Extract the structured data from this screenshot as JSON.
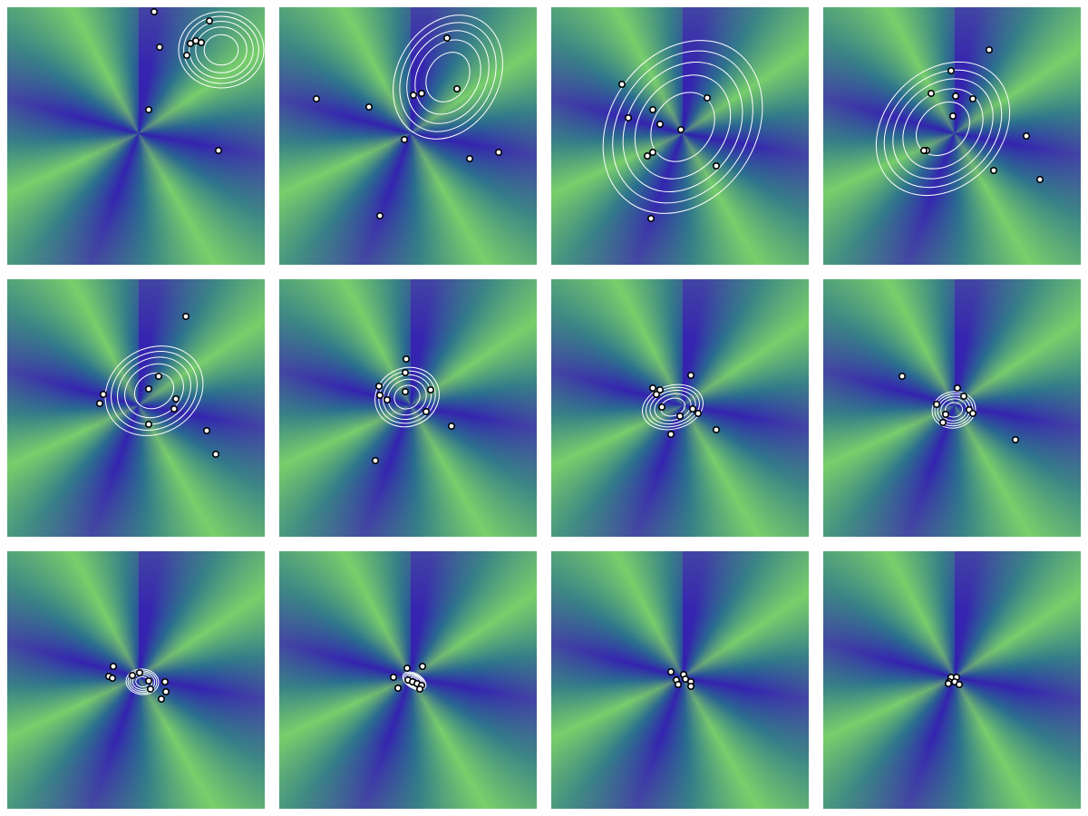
{
  "chart_data": [
    {
      "type": "scatter",
      "xlim": [
        0,
        284
      ],
      "ylim": [
        0,
        284
      ],
      "point_color": "#ffffff",
      "contour_color": "#ffffff",
      "contour_levels": [
        0.4,
        0.6,
        0.75,
        0.88,
        1.0
      ],
      "x": [
        162,
        223,
        168,
        202,
        208,
        214,
        198,
        156,
        233
      ],
      "y": [
        279,
        269,
        240,
        244,
        247,
        245,
        231,
        171,
        126
      ],
      "ellipse": {
        "cx": 236,
        "cy": 237,
        "rx": 47,
        "ry": 42,
        "angle": 0
      }
    },
    {
      "type": "scatter",
      "xlim": [
        0,
        284
      ],
      "ylim": [
        0,
        284
      ],
      "point_color": "#ffffff",
      "contour_color": "#ffffff",
      "contour_levels": [
        0.4,
        0.6,
        0.75,
        0.88,
        1.0
      ],
      "x": [
        185,
        41,
        99,
        148,
        157,
        196,
        138,
        210,
        242,
        111
      ],
      "y": [
        250,
        183,
        174,
        187,
        189,
        194,
        138,
        117,
        124,
        54
      ],
      "ellipse": {
        "cx": 186,
        "cy": 207,
        "rx": 72,
        "ry": 56,
        "angle": 60
      }
    },
    {
      "type": "scatter",
      "xlim": [
        0,
        284
      ],
      "ylim": [
        0,
        284
      ],
      "point_color": "#ffffff",
      "contour_color": "#ffffff",
      "contour_levels": [
        0.4,
        0.6,
        0.75,
        0.88,
        1.0
      ],
      "x": [
        78,
        172,
        112,
        85,
        120,
        143,
        112,
        106,
        182,
        110
      ],
      "y": [
        199,
        184,
        171,
        162,
        155,
        149,
        124,
        120,
        109,
        51
      ],
      "ellipse": {
        "cx": 145,
        "cy": 152,
        "rx": 102,
        "ry": 80,
        "angle": 55
      }
    },
    {
      "type": "scatter",
      "xlim": [
        0,
        284
      ],
      "ylim": [
        0,
        284
      ],
      "point_color": "#ffffff",
      "contour_color": "#ffffff",
      "contour_levels": [
        0.4,
        0.6,
        0.75,
        0.88,
        1.0
      ],
      "x": [
        183,
        141,
        119,
        146,
        165,
        143,
        224,
        114,
        111,
        188,
        239
      ],
      "y": [
        237,
        214,
        189,
        186,
        183,
        164,
        142,
        126,
        126,
        104,
        94
      ],
      "ellipse": {
        "cx": 132,
        "cy": 150,
        "rx": 82,
        "ry": 64,
        "angle": 45
      }
    },
    {
      "type": "scatter",
      "xlim": [
        0,
        284
      ],
      "ylim": [
        0,
        284
      ],
      "point_color": "#ffffff",
      "contour_color": "#ffffff",
      "contour_levels": [
        0.4,
        0.6,
        0.75,
        0.88,
        1.0
      ],
      "x": [
        197,
        167,
        106,
        102,
        156,
        186,
        184,
        156,
        220,
        230
      ],
      "y": [
        243,
        177,
        157,
        147,
        163,
        152,
        141,
        124,
        117,
        91
      ],
      "ellipse": {
        "cx": 162,
        "cy": 161,
        "rx": 56,
        "ry": 47,
        "angle": 30
      }
    },
    {
      "type": "scatter",
      "xlim": [
        0,
        284
      ],
      "ylim": [
        0,
        284
      ],
      "point_color": "#ffffff",
      "contour_color": "#ffffff",
      "contour_levels": [
        0.4,
        0.6,
        0.75,
        0.88,
        1.0
      ],
      "x": [
        140,
        139,
        110,
        111,
        119,
        139,
        167,
        162,
        190,
        106
      ],
      "y": [
        196,
        181,
        166,
        156,
        151,
        160,
        162,
        138,
        122,
        84
      ],
      "ellipse": {
        "cx": 141,
        "cy": 154,
        "rx": 36,
        "ry": 32,
        "angle": 25
      }
    },
    {
      "type": "scatter",
      "xlim": [
        0,
        284
      ],
      "ylim": [
        0,
        284
      ],
      "point_color": "#ffffff",
      "contour_color": "#ffffff",
      "contour_levels": [
        0.4,
        0.6,
        0.75,
        0.88,
        1.0
      ],
      "x": [
        154,
        112,
        120,
        116,
        122,
        142,
        156,
        162,
        182,
        132
      ],
      "y": [
        178,
        164,
        162,
        157,
        143,
        133,
        141,
        136,
        118,
        113
      ],
      "ellipse": {
        "cx": 134,
        "cy": 143,
        "rx": 34,
        "ry": 24,
        "angle": 15
      }
    },
    {
      "type": "scatter",
      "xlim": [
        0,
        284
      ],
      "ylim": [
        0,
        284
      ],
      "point_color": "#ffffff",
      "contour_color": "#ffffff",
      "contour_levels": [
        0.4,
        0.6,
        0.75,
        0.88,
        1.0
      ],
      "x": [
        87,
        148,
        155,
        125,
        161,
        165,
        135,
        132,
        212
      ],
      "y": [
        177,
        164,
        155,
        146,
        140,
        136,
        135,
        126,
        107
      ],
      "ellipse": {
        "cx": 144,
        "cy": 140,
        "rx": 24,
        "ry": 20,
        "angle": 10
      }
    },
    {
      "type": "scatter",
      "xlim": [
        0,
        284
      ],
      "ylim": [
        0,
        284
      ],
      "point_color": "#ffffff",
      "contour_color": "#ffffff",
      "contour_levels": [
        0.4,
        0.6,
        0.75,
        0.88,
        1.0
      ],
      "x": [
        117,
        146,
        112,
        116,
        138,
        156,
        174,
        158,
        175,
        170
      ],
      "y": [
        157,
        150,
        146,
        144,
        147,
        141,
        140,
        132,
        129,
        121
      ],
      "ellipse": {
        "cx": 149,
        "cy": 140,
        "rx": 18,
        "ry": 14,
        "angle": -5
      }
    },
    {
      "type": "scatter",
      "xlim": [
        0,
        284
      ],
      "ylim": [
        0,
        284
      ],
      "point_color": "#ffffff",
      "contour_color": "#ffffff",
      "contour_levels": [
        0.4,
        0.6,
        0.75,
        0.88,
        1.0
      ],
      "x": [
        158,
        141,
        126,
        142,
        147,
        152,
        157,
        131,
        155
      ],
      "y": [
        157,
        155,
        145,
        142,
        140,
        138,
        136,
        133,
        132
      ],
      "ellipse": {
        "cx": 149,
        "cy": 141,
        "rx": 14,
        "ry": 8,
        "angle": -30
      }
    },
    {
      "type": "scatter",
      "xlim": [
        0,
        284
      ],
      "ylim": [
        0,
        284
      ],
      "point_color": "#ffffff",
      "x": [
        132,
        146,
        138,
        148,
        154,
        140,
        154
      ],
      "y": [
        151,
        148,
        142,
        143,
        140,
        137,
        135
      ]
    },
    {
      "type": "scatter",
      "xlim": [
        0,
        284
      ],
      "ylim": [
        0,
        284
      ],
      "point_color": "#ffffff",
      "x": [
        141,
        147,
        139,
        145,
        150,
        138
      ],
      "y": [
        145,
        145,
        140,
        140,
        137,
        138
      ]
    }
  ]
}
